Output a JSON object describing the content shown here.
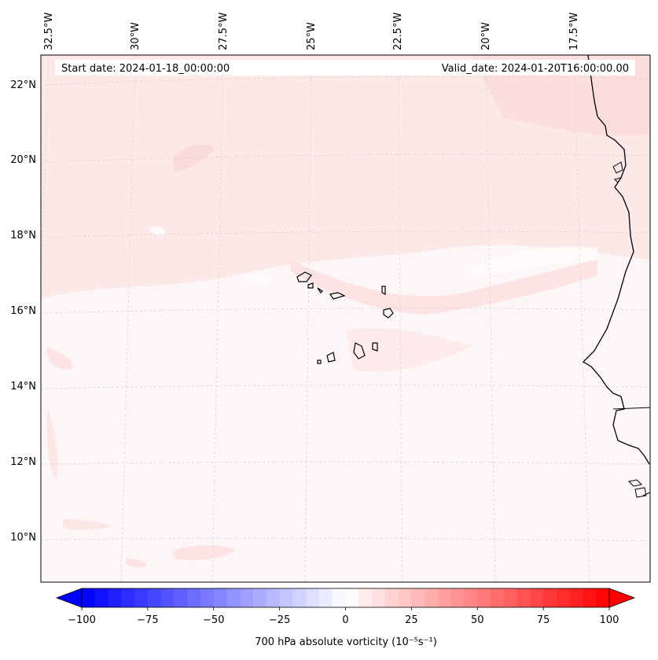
{
  "map": {
    "start_date": "Start date: 2024-01-18_00:00:00",
    "valid_date": "Valid_date: 2024-01-20T16:00:00.00",
    "lon_labels": [
      "32.5°W",
      "30°W",
      "27.5°W",
      "25°W",
      "22.5°W",
      "20°W",
      "17.5°W"
    ],
    "lat_labels": [
      "22°N",
      "20°N",
      "18°N",
      "16°N",
      "14°N",
      "12°N",
      "10°N"
    ],
    "land_color": "#000000",
    "background_color": "#fdf6f6"
  },
  "colorbar": {
    "label": "700 hPa absolute vorticity (10⁻⁵s⁻¹)",
    "ticks": [
      "−100",
      "−75",
      "−50",
      "−25",
      "0",
      "25",
      "50",
      "75",
      "100"
    ],
    "min": -100,
    "max": 100,
    "cmap": "bwr",
    "low_color": "#0000ff",
    "mid_color": "#ffffff",
    "high_color": "#ff0000"
  }
}
